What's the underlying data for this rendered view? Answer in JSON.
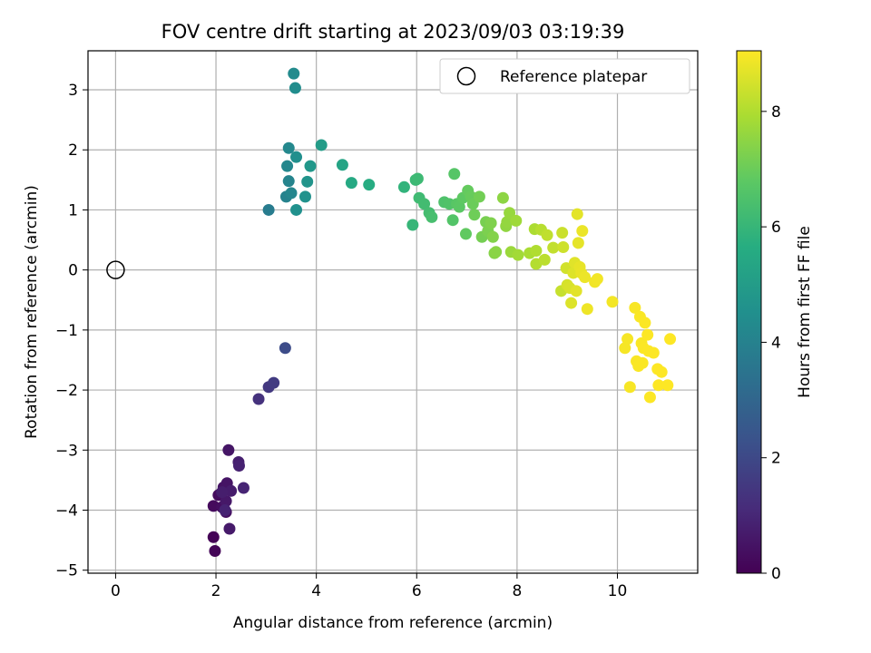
{
  "chart_data": {
    "type": "scatter",
    "title": "FOV centre drift starting at 2023/09/03 03:19:39",
    "xlabel": "Angular distance from reference (arcmin)",
    "ylabel": "Rotation from reference (arcmin)",
    "xlim": [
      -0.55,
      11.6
    ],
    "ylim": [
      -5.05,
      3.65
    ],
    "xticks": [
      0,
      2,
      4,
      6,
      8,
      10
    ],
    "yticks": [
      -5,
      -4,
      -3,
      -2,
      -1,
      0,
      1,
      2,
      3
    ],
    "grid": true,
    "legend": {
      "placement": "top-right",
      "entries": [
        "Reference platepar"
      ]
    },
    "reference_point": {
      "x": 0,
      "y": 0,
      "marker": "open-circle"
    },
    "colorbar": {
      "label": "Hours from first FF file",
      "range": [
        0,
        9.05
      ],
      "ticks": [
        0,
        2,
        4,
        6,
        8
      ],
      "colormap": "viridis"
    },
    "points": [
      {
        "x": 1.95,
        "y": -4.45,
        "h": 0.05
      },
      {
        "x": 1.98,
        "y": -4.68,
        "h": 0.1
      },
      {
        "x": 1.95,
        "y": -3.93,
        "h": 0.25
      },
      {
        "x": 2.05,
        "y": -3.75,
        "h": 0.3
      },
      {
        "x": 2.12,
        "y": -3.95,
        "h": 0.35
      },
      {
        "x": 2.2,
        "y": -4.03,
        "h": 0.4
      },
      {
        "x": 2.15,
        "y": -3.62,
        "h": 0.45
      },
      {
        "x": 2.22,
        "y": -3.55,
        "h": 0.5
      },
      {
        "x": 2.25,
        "y": -3.0,
        "h": 0.55
      },
      {
        "x": 2.2,
        "y": -3.85,
        "h": 0.6
      },
      {
        "x": 2.27,
        "y": -4.31,
        "h": 0.65
      },
      {
        "x": 2.3,
        "y": -3.68,
        "h": 0.7
      },
      {
        "x": 2.12,
        "y": -3.7,
        "h": 0.75
      },
      {
        "x": 2.45,
        "y": -3.2,
        "h": 0.8
      },
      {
        "x": 2.46,
        "y": -3.26,
        "h": 0.85
      },
      {
        "x": 2.18,
        "y": -4.0,
        "h": 0.9
      },
      {
        "x": 2.55,
        "y": -3.63,
        "h": 0.95
      },
      {
        "x": 2.85,
        "y": -2.15,
        "h": 1.3
      },
      {
        "x": 3.05,
        "y": -1.95,
        "h": 1.5
      },
      {
        "x": 3.15,
        "y": -1.88,
        "h": 1.6
      },
      {
        "x": 3.38,
        "y": -1.3,
        "h": 2.1
      },
      {
        "x": 3.05,
        "y": 1.0,
        "h": 3.8
      },
      {
        "x": 3.4,
        "y": 1.22,
        "h": 4.0
      },
      {
        "x": 3.45,
        "y": 1.48,
        "h": 4.1
      },
      {
        "x": 3.5,
        "y": 1.28,
        "h": 4.15
      },
      {
        "x": 3.42,
        "y": 1.73,
        "h": 4.2
      },
      {
        "x": 3.45,
        "y": 2.03,
        "h": 4.25
      },
      {
        "x": 3.55,
        "y": 3.27,
        "h": 4.35
      },
      {
        "x": 3.58,
        "y": 3.03,
        "h": 4.4
      },
      {
        "x": 3.6,
        "y": 1.88,
        "h": 4.5
      },
      {
        "x": 3.6,
        "y": 1.0,
        "h": 4.55
      },
      {
        "x": 3.78,
        "y": 1.22,
        "h": 4.6
      },
      {
        "x": 3.82,
        "y": 1.47,
        "h": 4.7
      },
      {
        "x": 3.88,
        "y": 1.73,
        "h": 4.8
      },
      {
        "x": 4.1,
        "y": 2.08,
        "h": 5.0
      },
      {
        "x": 4.52,
        "y": 1.75,
        "h": 5.3
      },
      {
        "x": 4.7,
        "y": 1.45,
        "h": 5.5
      },
      {
        "x": 5.05,
        "y": 1.42,
        "h": 5.6
      },
      {
        "x": 5.75,
        "y": 1.38,
        "h": 5.9
      },
      {
        "x": 5.92,
        "y": 0.75,
        "h": 6.0
      },
      {
        "x": 5.98,
        "y": 1.5,
        "h": 6.1
      },
      {
        "x": 6.02,
        "y": 1.52,
        "h": 6.15
      },
      {
        "x": 6.05,
        "y": 1.2,
        "h": 6.2
      },
      {
        "x": 6.15,
        "y": 1.1,
        "h": 6.25
      },
      {
        "x": 6.25,
        "y": 0.95,
        "h": 6.3
      },
      {
        "x": 6.3,
        "y": 0.88,
        "h": 6.35
      },
      {
        "x": 6.55,
        "y": 1.13,
        "h": 6.5
      },
      {
        "x": 6.65,
        "y": 1.1,
        "h": 6.55
      },
      {
        "x": 6.72,
        "y": 0.83,
        "h": 6.6
      },
      {
        "x": 6.75,
        "y": 1.6,
        "h": 6.65
      },
      {
        "x": 6.8,
        "y": 1.1,
        "h": 6.7
      },
      {
        "x": 6.85,
        "y": 1.05,
        "h": 6.75
      },
      {
        "x": 6.92,
        "y": 1.2,
        "h": 6.8
      },
      {
        "x": 6.98,
        "y": 0.6,
        "h": 6.85
      },
      {
        "x": 7.02,
        "y": 1.32,
        "h": 6.9
      },
      {
        "x": 7.08,
        "y": 1.22,
        "h": 6.95
      },
      {
        "x": 7.12,
        "y": 1.1,
        "h": 7.0
      },
      {
        "x": 7.15,
        "y": 0.92,
        "h": 7.05
      },
      {
        "x": 7.25,
        "y": 1.22,
        "h": 7.1
      },
      {
        "x": 7.3,
        "y": 0.55,
        "h": 7.15
      },
      {
        "x": 7.38,
        "y": 0.8,
        "h": 7.2
      },
      {
        "x": 7.42,
        "y": 0.65,
        "h": 7.25
      },
      {
        "x": 7.48,
        "y": 0.78,
        "h": 7.3
      },
      {
        "x": 7.52,
        "y": 0.55,
        "h": 7.35
      },
      {
        "x": 7.55,
        "y": 0.28,
        "h": 7.4
      },
      {
        "x": 7.58,
        "y": 0.3,
        "h": 7.45
      },
      {
        "x": 7.72,
        "y": 1.2,
        "h": 7.5
      },
      {
        "x": 7.78,
        "y": 0.73,
        "h": 7.55
      },
      {
        "x": 7.8,
        "y": 0.8,
        "h": 7.6
      },
      {
        "x": 7.85,
        "y": 0.95,
        "h": 7.65
      },
      {
        "x": 7.88,
        "y": 0.3,
        "h": 7.7
      },
      {
        "x": 7.98,
        "y": 0.82,
        "h": 7.75
      },
      {
        "x": 8.02,
        "y": 0.25,
        "h": 7.8
      },
      {
        "x": 8.25,
        "y": 0.28,
        "h": 7.9
      },
      {
        "x": 8.35,
        "y": 0.68,
        "h": 7.95
      },
      {
        "x": 8.38,
        "y": 0.32,
        "h": 8.0
      },
      {
        "x": 8.38,
        "y": 0.1,
        "h": 8.05
      },
      {
        "x": 8.48,
        "y": 0.67,
        "h": 8.1
      },
      {
        "x": 8.55,
        "y": 0.17,
        "h": 8.15
      },
      {
        "x": 8.6,
        "y": 0.58,
        "h": 8.2
      },
      {
        "x": 8.72,
        "y": 0.37,
        "h": 8.25
      },
      {
        "x": 8.88,
        "y": -0.35,
        "h": 8.3
      },
      {
        "x": 8.9,
        "y": 0.62,
        "h": 8.35
      },
      {
        "x": 8.92,
        "y": 0.38,
        "h": 8.4
      },
      {
        "x": 8.98,
        "y": 0.03,
        "h": 8.45
      },
      {
        "x": 9.0,
        "y": -0.25,
        "h": 8.5
      },
      {
        "x": 9.05,
        "y": -0.3,
        "h": 8.55
      },
      {
        "x": 9.08,
        "y": -0.55,
        "h": 8.6
      },
      {
        "x": 9.12,
        "y": -0.05,
        "h": 8.62
      },
      {
        "x": 9.15,
        "y": 0.12,
        "h": 8.65
      },
      {
        "x": 9.18,
        "y": -0.35,
        "h": 8.68
      },
      {
        "x": 9.2,
        "y": 0.93,
        "h": 8.7
      },
      {
        "x": 9.22,
        "y": 0.45,
        "h": 8.72
      },
      {
        "x": 9.25,
        "y": 0.05,
        "h": 8.75
      },
      {
        "x": 9.28,
        "y": -0.05,
        "h": 8.78
      },
      {
        "x": 9.3,
        "y": 0.65,
        "h": 8.8
      },
      {
        "x": 9.35,
        "y": -0.12,
        "h": 8.82
      },
      {
        "x": 9.4,
        "y": -0.65,
        "h": 8.85
      },
      {
        "x": 9.55,
        "y": -0.2,
        "h": 8.88
      },
      {
        "x": 9.6,
        "y": -0.15,
        "h": 8.9
      },
      {
        "x": 9.9,
        "y": -0.53,
        "h": 8.92
      },
      {
        "x": 10.15,
        "y": -1.3,
        "h": 8.95
      },
      {
        "x": 10.2,
        "y": -1.15,
        "h": 8.96
      },
      {
        "x": 10.25,
        "y": -1.95,
        "h": 8.97
      },
      {
        "x": 10.35,
        "y": -0.63,
        "h": 8.98
      },
      {
        "x": 10.38,
        "y": -1.52,
        "h": 8.99
      },
      {
        "x": 10.42,
        "y": -1.6,
        "h": 9.0
      },
      {
        "x": 10.45,
        "y": -0.78,
        "h": 9.0
      },
      {
        "x": 10.48,
        "y": -1.22,
        "h": 9.01
      },
      {
        "x": 10.5,
        "y": -1.55,
        "h": 9.01
      },
      {
        "x": 10.52,
        "y": -1.3,
        "h": 9.02
      },
      {
        "x": 10.55,
        "y": -0.88,
        "h": 9.02
      },
      {
        "x": 10.6,
        "y": -1.08,
        "h": 9.03
      },
      {
        "x": 10.62,
        "y": -1.35,
        "h": 9.03
      },
      {
        "x": 10.65,
        "y": -2.12,
        "h": 9.04
      },
      {
        "x": 10.72,
        "y": -1.38,
        "h": 9.04
      },
      {
        "x": 10.8,
        "y": -1.65,
        "h": 9.05
      },
      {
        "x": 10.82,
        "y": -1.92,
        "h": 9.05
      },
      {
        "x": 10.88,
        "y": -1.7,
        "h": 9.05
      },
      {
        "x": 11.0,
        "y": -1.92,
        "h": 9.05
      },
      {
        "x": 11.05,
        "y": -1.15,
        "h": 9.05
      }
    ]
  }
}
